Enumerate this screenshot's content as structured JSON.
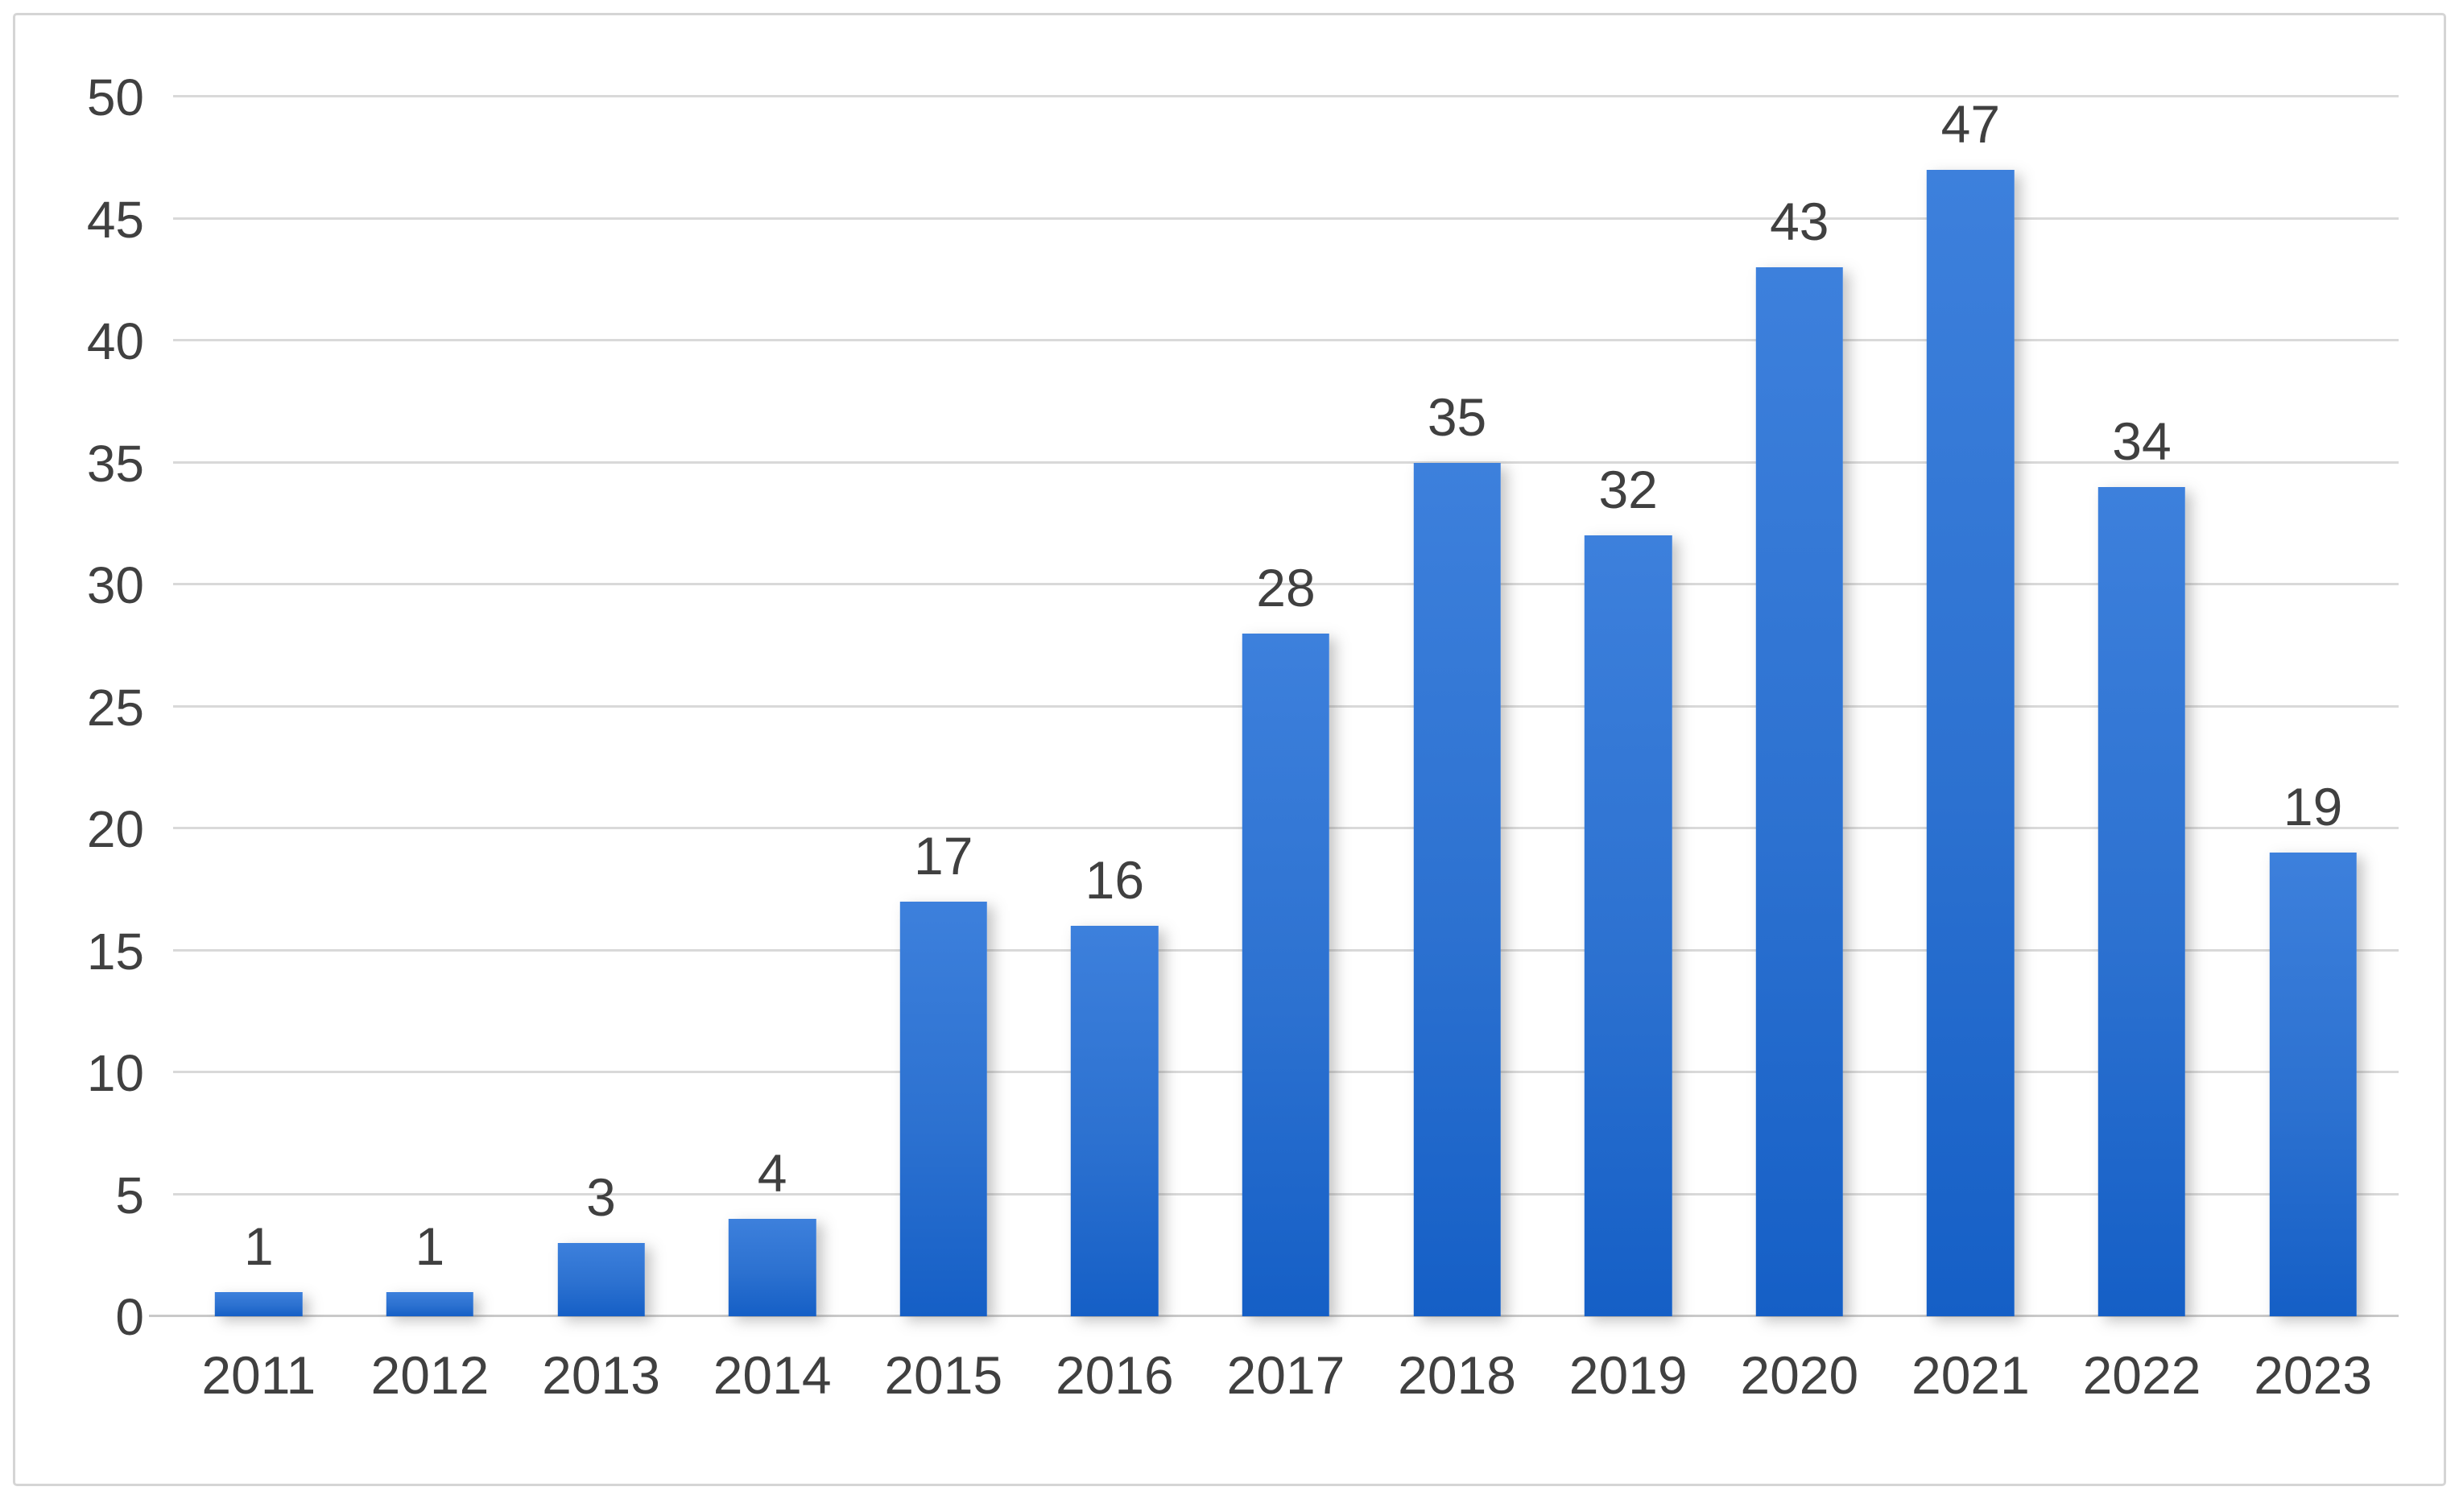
{
  "figure": {
    "background": "#FFFFFF",
    "frame_border_color": "#D5D5D5"
  },
  "chart_data": {
    "type": "bar",
    "title": "",
    "xlabel": "",
    "ylabel": "",
    "categories": [
      "2011",
      "2012",
      "2013",
      "2014",
      "2015",
      "2016",
      "2017",
      "2018",
      "2019",
      "2020",
      "2021",
      "2022",
      "2023"
    ],
    "values": [
      1,
      1,
      3,
      4,
      17,
      16,
      28,
      35,
      32,
      43,
      47,
      34,
      19
    ],
    "data_labels": [
      "1",
      "1",
      "3",
      "4",
      "17",
      "16",
      "28",
      "35",
      "32",
      "43",
      "47",
      "34",
      "19"
    ],
    "ylim": [
      0,
      50
    ],
    "y_tick_step": 5,
    "y_ticks": [
      "0",
      "5",
      "10",
      "15",
      "20",
      "25",
      "30",
      "35",
      "40",
      "45",
      "50"
    ],
    "grid": true,
    "legend": false,
    "colors": {
      "bar_gradient_top": "#3D80DC",
      "bar_gradient_mid": "#2C71D0",
      "bar_gradient_bottom": "#155FC6",
      "gridline": "#D9D9D9",
      "axis_line": "#C9C9C9",
      "tick_text": "#404040",
      "label_text": "#404040"
    }
  }
}
